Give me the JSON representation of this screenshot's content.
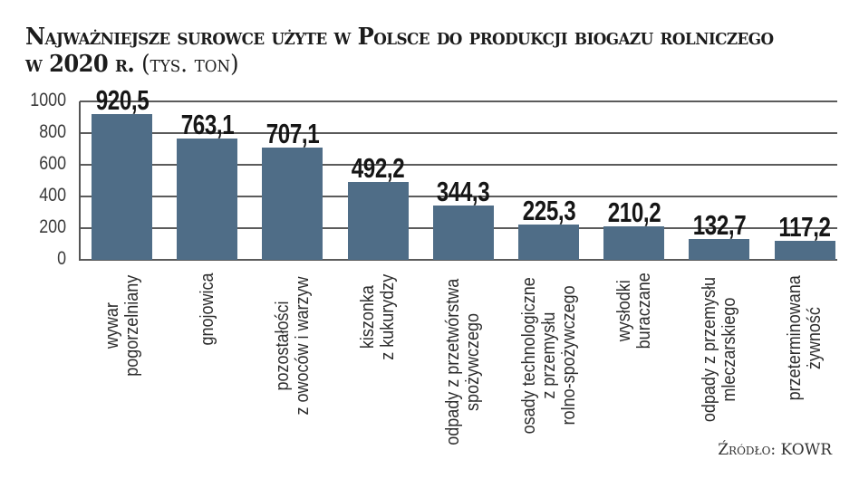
{
  "title": {
    "main": "Najważniejsze surowce użyte w Polsce do produkcji biogazu rolniczego w 2020 r.",
    "unit": "(tys. ton)"
  },
  "source": "Źródło: KOWR",
  "colors": {
    "bar": "#4f6d87",
    "grid": "#5b5b5b",
    "text": "#1c1c1c"
  },
  "chart_data": {
    "type": "bar",
    "title": "Najważniejsze surowce użyte w Polsce do produkcji biogazu rolniczego w 2020 r. (tys. ton)",
    "xlabel": "",
    "ylabel": "tys. ton",
    "ylim": [
      0,
      1000
    ],
    "yticks": [
      0,
      200,
      400,
      600,
      800,
      1000
    ],
    "grid": true,
    "categories": [
      "wywar pogorzelniany",
      "gnojowica",
      "pozostałości z owoców i warzyw",
      "kiszonka z kukurydzy",
      "odpady z przetwórstwa spożywczego",
      "osady technologiczne z przemysłu rolno-spożywczego",
      "wysłodki buraczane",
      "odpady z przemysłu mleczarskiego",
      "przeterminowana żywność"
    ],
    "category_lines": [
      [
        "wywar",
        "pogorzelniany"
      ],
      [
        "gnojowica"
      ],
      [
        "pozostałości",
        "z owoców i warzyw"
      ],
      [
        "kiszonka",
        "z kukurydzy"
      ],
      [
        "odpady z przetwórstwa",
        "spożywczego"
      ],
      [
        "osady technologiczne",
        "z przemysłu",
        "rolno-spożywczego"
      ],
      [
        "wysłodki",
        "buraczane"
      ],
      [
        "odpady z przemysłu",
        "mleczarskiego"
      ],
      [
        "przeterminowana",
        "żywność"
      ]
    ],
    "values": [
      920.5,
      763.1,
      707.1,
      492.2,
      344.3,
      225.3,
      210.2,
      132.7,
      117.2
    ],
    "value_labels": [
      "920,5",
      "763,1",
      "707,1",
      "492,2",
      "344,3",
      "225,3",
      "210,2",
      "132,7",
      "117,2"
    ],
    "source": "Źródło: KOWR"
  }
}
